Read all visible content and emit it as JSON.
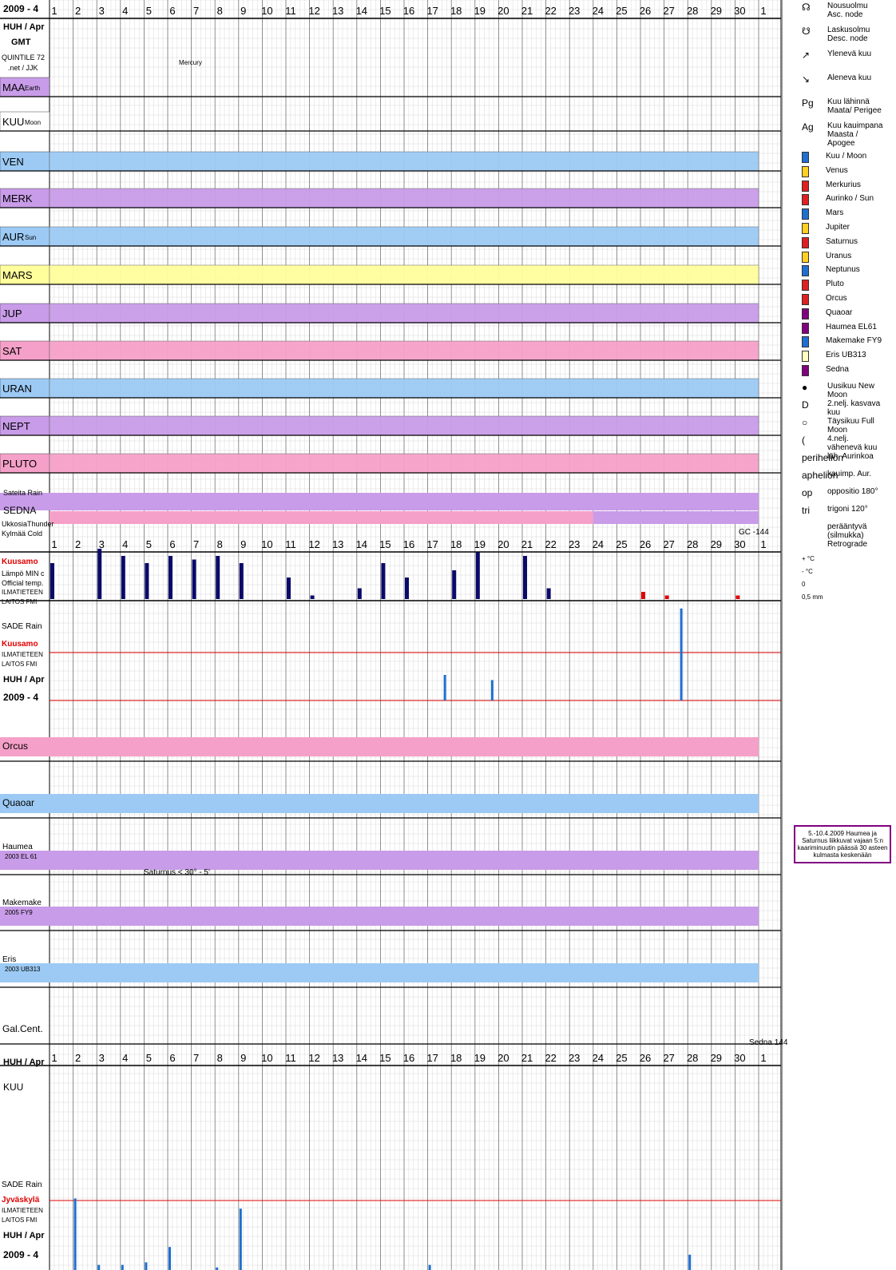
{
  "header": {
    "year_month": "2009 - 4",
    "huh_apr": "HUH / Apr",
    "gmt": "GMT",
    "quintile": "QUINTILE 72",
    "site": ".net / JJK",
    "mercury_note": "Mercury"
  },
  "days": [
    "1",
    "2",
    "3",
    "4",
    "5",
    "6",
    "7",
    "8",
    "9",
    "10",
    "11",
    "12",
    "13",
    "14",
    "15",
    "16",
    "17",
    "18",
    "19",
    "20",
    "21",
    "22",
    "23",
    "24",
    "25",
    "26",
    "27",
    "28",
    "29",
    "30",
    "1"
  ],
  "rows": [
    {
      "label": "MAA",
      "sub": "Earth",
      "color": "#c89ce8"
    },
    {
      "label": "KUU",
      "sub": "Moon",
      "color": "#ffffff"
    },
    {
      "label": "VEN",
      "sub": "",
      "color": "#9ccaf4"
    },
    {
      "label": "MERK",
      "sub": "",
      "color": "#c89ce8"
    },
    {
      "label": "AUR",
      "sub": "Sun",
      "color": "#9ccaf4"
    },
    {
      "label": "MARS",
      "sub": "",
      "color": "#ffff9c"
    },
    {
      "label": "JUP",
      "sub": "",
      "color": "#c89ce8"
    },
    {
      "label": "SAT",
      "sub": "",
      "color": "#f5a0c8"
    },
    {
      "label": "URAN",
      "sub": "",
      "color": "#9ccaf4"
    },
    {
      "label": "NEPT",
      "sub": "",
      "color": "#c89ce8"
    },
    {
      "label": "PLUTO",
      "sub": "",
      "color": "#f5a0c8"
    }
  ],
  "sedna": {
    "sateita": "Sateita  Rain",
    "label": "SEDNA",
    "ukkosia": "UkkosiaThunder",
    "kylma": "Kylmää Cold",
    "gc": "GC  -144"
  },
  "weather": {
    "kuusamo": "Kuusamo",
    "lampo": "Lämpö MIN c",
    "official": "Official temp.",
    "ilmatieteen": "ILMATIETEEN",
    "laitos": "LAITOS  FMI",
    "sade": "SADE Rain",
    "jyvaskyla": "Jyväskylä"
  },
  "lower_rows": [
    {
      "label": "Orcus",
      "sub": "",
      "color": "#f5a0c8"
    },
    {
      "label": "Quaoar",
      "sub": "",
      "color": "#9ccaf4"
    },
    {
      "label": "Haumea",
      "sub": "2003 EL 61",
      "color": "#c89ce8"
    },
    {
      "label": "Makemake",
      "sub": "2005 FY9",
      "color": "#c89ce8"
    },
    {
      "label": "Eris",
      "sub": "2003 UB313",
      "color": "#9ccaf4"
    },
    {
      "label": "Gal.Cent.",
      "sub": "",
      "color": "#ffffff"
    }
  ],
  "annotations": {
    "saturnus": "Saturnus < 30° - 5'",
    "sedna144": "Sedna  144",
    "note": "5.-10.4.2009 Haumea ja Saturnus liikkuvat vajaan 5:n kaariminuutin päässä 30 asteen kulmasta keskenään"
  },
  "legend": [
    {
      "sym": "☊",
      "text": "Nousuolmu Asc. node"
    },
    {
      "sym": "☋",
      "text": "Laskusolmu Desc. node"
    },
    {
      "sym": "↗",
      "text": "Ylenevä kuu"
    },
    {
      "sym": "↘",
      "text": "Aleneva kuu"
    },
    {
      "sym": "Pg",
      "text": "Kuu lähinnä Maata/ Perigee"
    },
    {
      "sym": "Ag",
      "text": "Kuu kauimpana Maasta / Apogee"
    }
  ],
  "planet_legend": [
    {
      "name": "Kuu / Moon",
      "color": "#1e6fd0"
    },
    {
      "name": "Venus",
      "color": "#ffd020"
    },
    {
      "name": "Merkurius",
      "color": "#e02020"
    },
    {
      "name": "Aurinko / Sun",
      "color": "#e02020"
    },
    {
      "name": "Mars",
      "color": "#1e6fd0"
    },
    {
      "name": "Jupiter",
      "color": "#ffd020"
    },
    {
      "name": "Saturnus",
      "color": "#e02020"
    },
    {
      "name": "Uranus",
      "color": "#ffd020"
    },
    {
      "name": "Neptunus",
      "color": "#1e6fd0"
    },
    {
      "name": "Pluto",
      "color": "#e02020"
    },
    {
      "name": "Orcus",
      "color": "#e02020"
    },
    {
      "name": "Quaoar",
      "color": "#800080"
    },
    {
      "name": "Haumea EL61",
      "color": "#800080"
    },
    {
      "name": "Makemake FY9",
      "color": "#1e6fd0"
    },
    {
      "name": "Eris  UB313",
      "color": "#ffffc0"
    },
    {
      "name": "Sedna",
      "color": "#800080"
    }
  ],
  "moon_legend": [
    {
      "sym": "●",
      "text": "Uusikuu New Moon"
    },
    {
      "sym": "D",
      "text": "2.nelj. kasvava kuu"
    },
    {
      "sym": "○",
      "text": "Täysikuu Full Moon"
    },
    {
      "sym": "(",
      "text": "4.nelj. vähenevä kuu"
    },
    {
      "sym": "perihelion",
      "text": "läh. Aurinkoa"
    },
    {
      "sym": "aphelion",
      "text": "kauimp. Aur."
    },
    {
      "sym": "op",
      "text": "oppositio 180°"
    },
    {
      "sym": "tri",
      "text": "trigoni 120°"
    },
    {
      "sym": "",
      "text": "perääntyvä (silmukka) Retrograde"
    }
  ],
  "temp_legend": [
    "+ °C",
    "- °C",
    "0",
    "0,5 mm"
  ],
  "chart_data": {
    "type": "bar",
    "title": "2009 - 4",
    "kuusamo_min_temp_bars": [
      10,
      0,
      14,
      12,
      10,
      12,
      11,
      12,
      10,
      0,
      6,
      1,
      0,
      3,
      10,
      6,
      0,
      8,
      13,
      0,
      12,
      3,
      0,
      0,
      0,
      2,
      1,
      0,
      0,
      1
    ],
    "kuusamo_rain_bars": [
      0,
      0,
      0,
      0,
      0,
      0,
      0,
      0,
      0,
      0,
      0,
      0,
      0,
      0,
      0,
      0,
      20,
      0,
      16,
      0,
      0,
      0,
      0,
      0,
      0,
      0,
      72,
      0,
      0,
      0
    ],
    "jyvaskyla_rain_bars": [
      0,
      28,
      2,
      2,
      3,
      9,
      0,
      1,
      24,
      0,
      0,
      0,
      0,
      0,
      0,
      0,
      2,
      0,
      0,
      0,
      0,
      0,
      0,
      0,
      0,
      0,
      0,
      6,
      0,
      0
    ]
  }
}
